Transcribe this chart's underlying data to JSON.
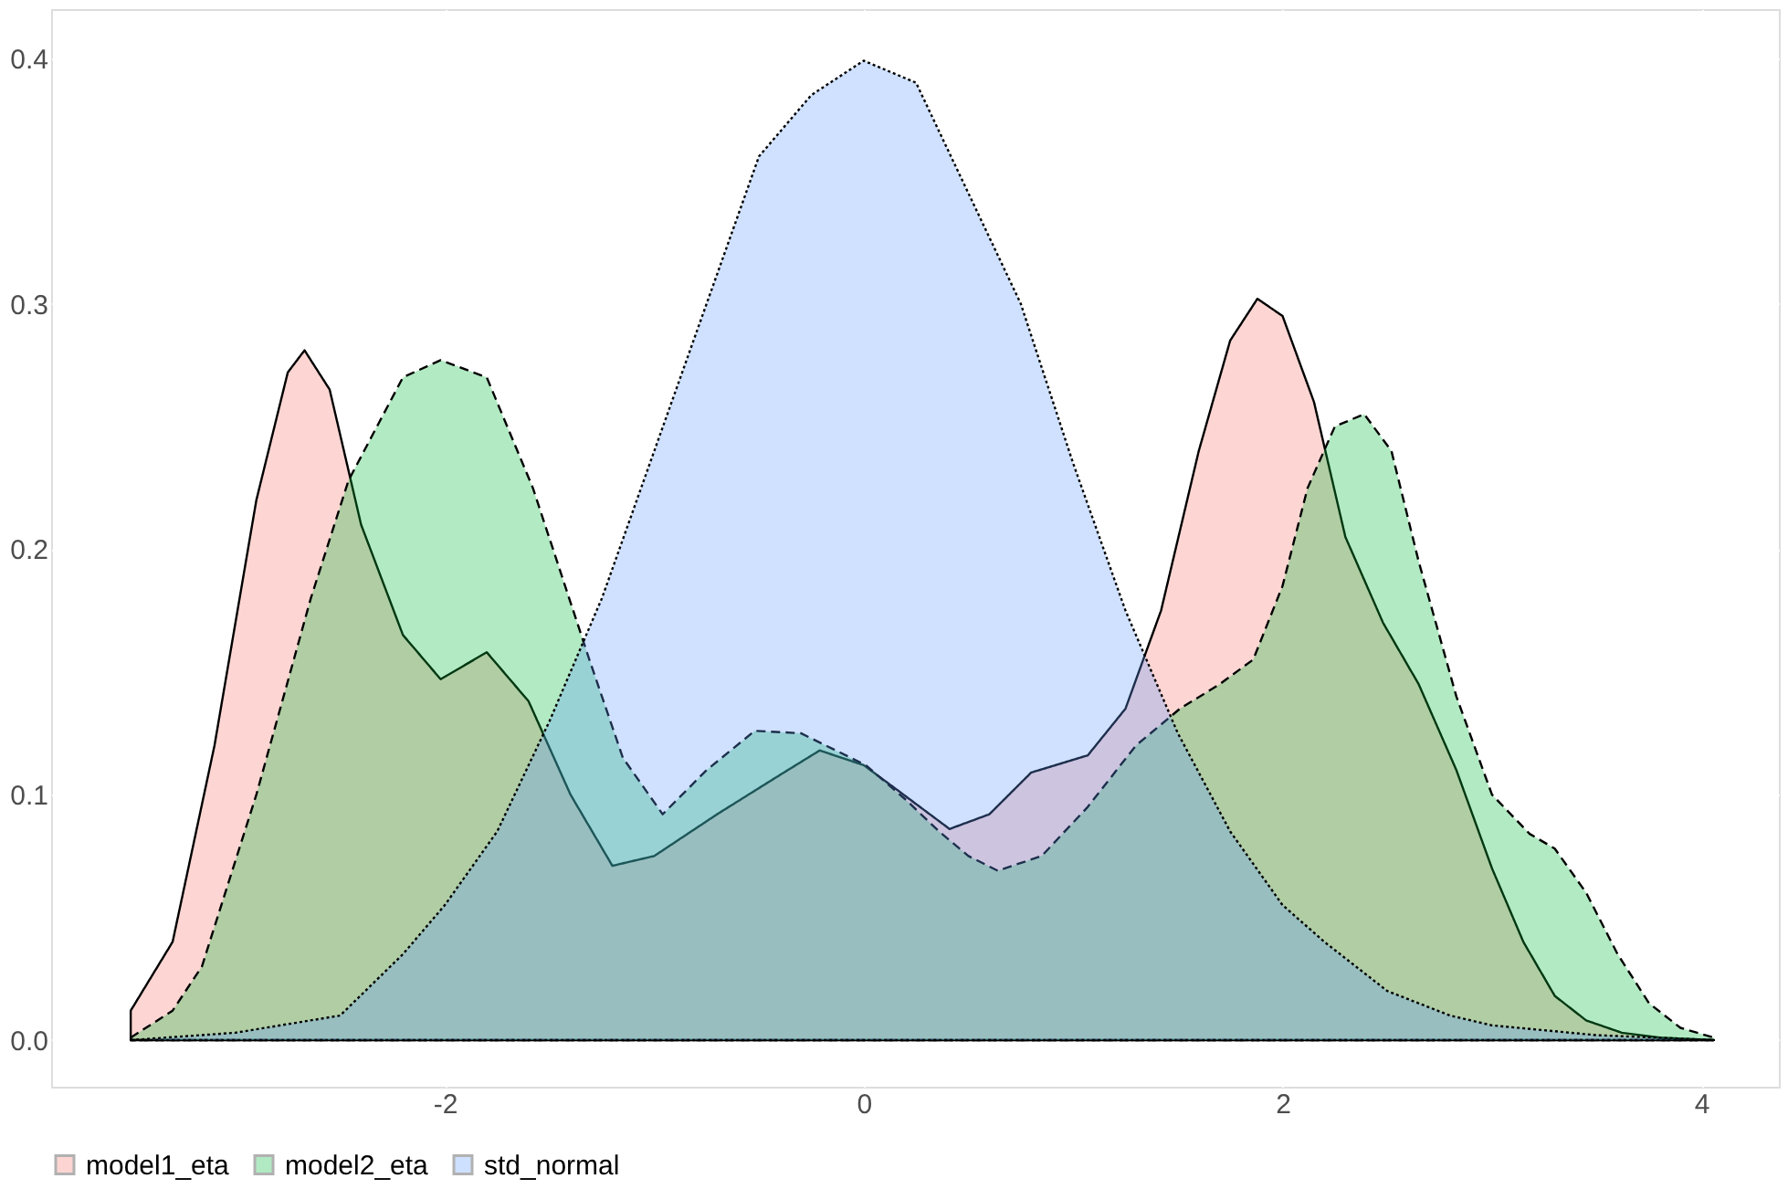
{
  "chart_data": {
    "type": "area",
    "xlim": [
      -3.88,
      4.37
    ],
    "ylim": [
      -0.019,
      0.42
    ],
    "xticks": [
      -2,
      0,
      2,
      4
    ],
    "yticks": [
      {
        "value": 0,
        "label": "0.0"
      },
      0.1,
      0.2,
      0.3,
      0.4
    ],
    "grid": true,
    "legend": "bottom",
    "series": [
      {
        "name": "model1_eta",
        "color": "#F8766D",
        "line_style": "solid",
        "x": [
          -3.5,
          -3.5,
          -3.3,
          -3.1,
          -2.9,
          -2.75,
          -2.67,
          -2.55,
          -2.4,
          -2.2,
          -2.02,
          -1.8,
          -1.6,
          -1.4,
          -1.2,
          -1.0,
          -0.7,
          -0.4,
          -0.21,
          0.0,
          0.19,
          0.41,
          0.6,
          0.8,
          1.07,
          1.25,
          1.42,
          1.6,
          1.75,
          1.88,
          2.0,
          2.15,
          2.3,
          2.48,
          2.65,
          2.83,
          3.0,
          3.15,
          3.3,
          3.45,
          3.62,
          3.8,
          4.06
        ],
        "values": [
          0,
          0.012,
          0.04,
          0.12,
          0.22,
          0.272,
          0.281,
          0.265,
          0.21,
          0.165,
          0.147,
          0.158,
          0.138,
          0.1,
          0.071,
          0.075,
          0.092,
          0.108,
          0.118,
          0.112,
          0.1,
          0.086,
          0.092,
          0.109,
          0.116,
          0.135,
          0.175,
          0.24,
          0.285,
          0.302,
          0.295,
          0.26,
          0.205,
          0.17,
          0.145,
          0.11,
          0.07,
          0.04,
          0.018,
          0.008,
          0.003,
          0.001,
          0
        ]
      },
      {
        "name": "model2_eta",
        "color": "#00BA38",
        "line_style": "dashed",
        "x": [
          -3.5,
          -3.3,
          -3.16,
          -2.9,
          -2.64,
          -2.46,
          -2.2,
          -2.02,
          -1.8,
          -1.58,
          -1.31,
          -1.15,
          -0.96,
          -0.75,
          -0.52,
          -0.3,
          0.01,
          0.2,
          0.36,
          0.5,
          0.64,
          0.85,
          1.07,
          1.3,
          1.51,
          1.7,
          1.86,
          2.0,
          2.12,
          2.25,
          2.39,
          2.52,
          2.65,
          2.83,
          3.0,
          3.18,
          3.3,
          3.45,
          3.6,
          3.75,
          3.9,
          4.06
        ],
        "values": [
          0.001,
          0.012,
          0.03,
          0.1,
          0.18,
          0.228,
          0.27,
          0.277,
          0.27,
          0.225,
          0.155,
          0.115,
          0.092,
          0.11,
          0.126,
          0.125,
          0.112,
          0.098,
          0.085,
          0.075,
          0.069,
          0.075,
          0.095,
          0.12,
          0.135,
          0.145,
          0.155,
          0.185,
          0.225,
          0.25,
          0.255,
          0.24,
          0.195,
          0.14,
          0.1,
          0.084,
          0.078,
          0.06,
          0.035,
          0.015,
          0.005,
          0.001
        ]
      },
      {
        "name": "std_normal",
        "color": "#619CFF",
        "line_style": "dotted",
        "x": [
          -3.5,
          -3.0,
          -2.5,
          -2.2,
          -2.0,
          -1.75,
          -1.5,
          -1.25,
          -1.0,
          -0.75,
          -0.5,
          -0.25,
          0.0,
          0.25,
          0.5,
          0.75,
          1.0,
          1.25,
          1.5,
          1.75,
          2.0,
          2.2,
          2.5,
          2.8,
          3.0,
          3.5,
          4.06
        ],
        "values": [
          0.0,
          0.003,
          0.01,
          0.035,
          0.055,
          0.085,
          0.13,
          0.18,
          0.24,
          0.3,
          0.36,
          0.385,
          0.399,
          0.39,
          0.345,
          0.3,
          0.235,
          0.175,
          0.125,
          0.085,
          0.055,
          0.04,
          0.02,
          0.01,
          0.006,
          0.002,
          0.0
        ]
      }
    ]
  }
}
